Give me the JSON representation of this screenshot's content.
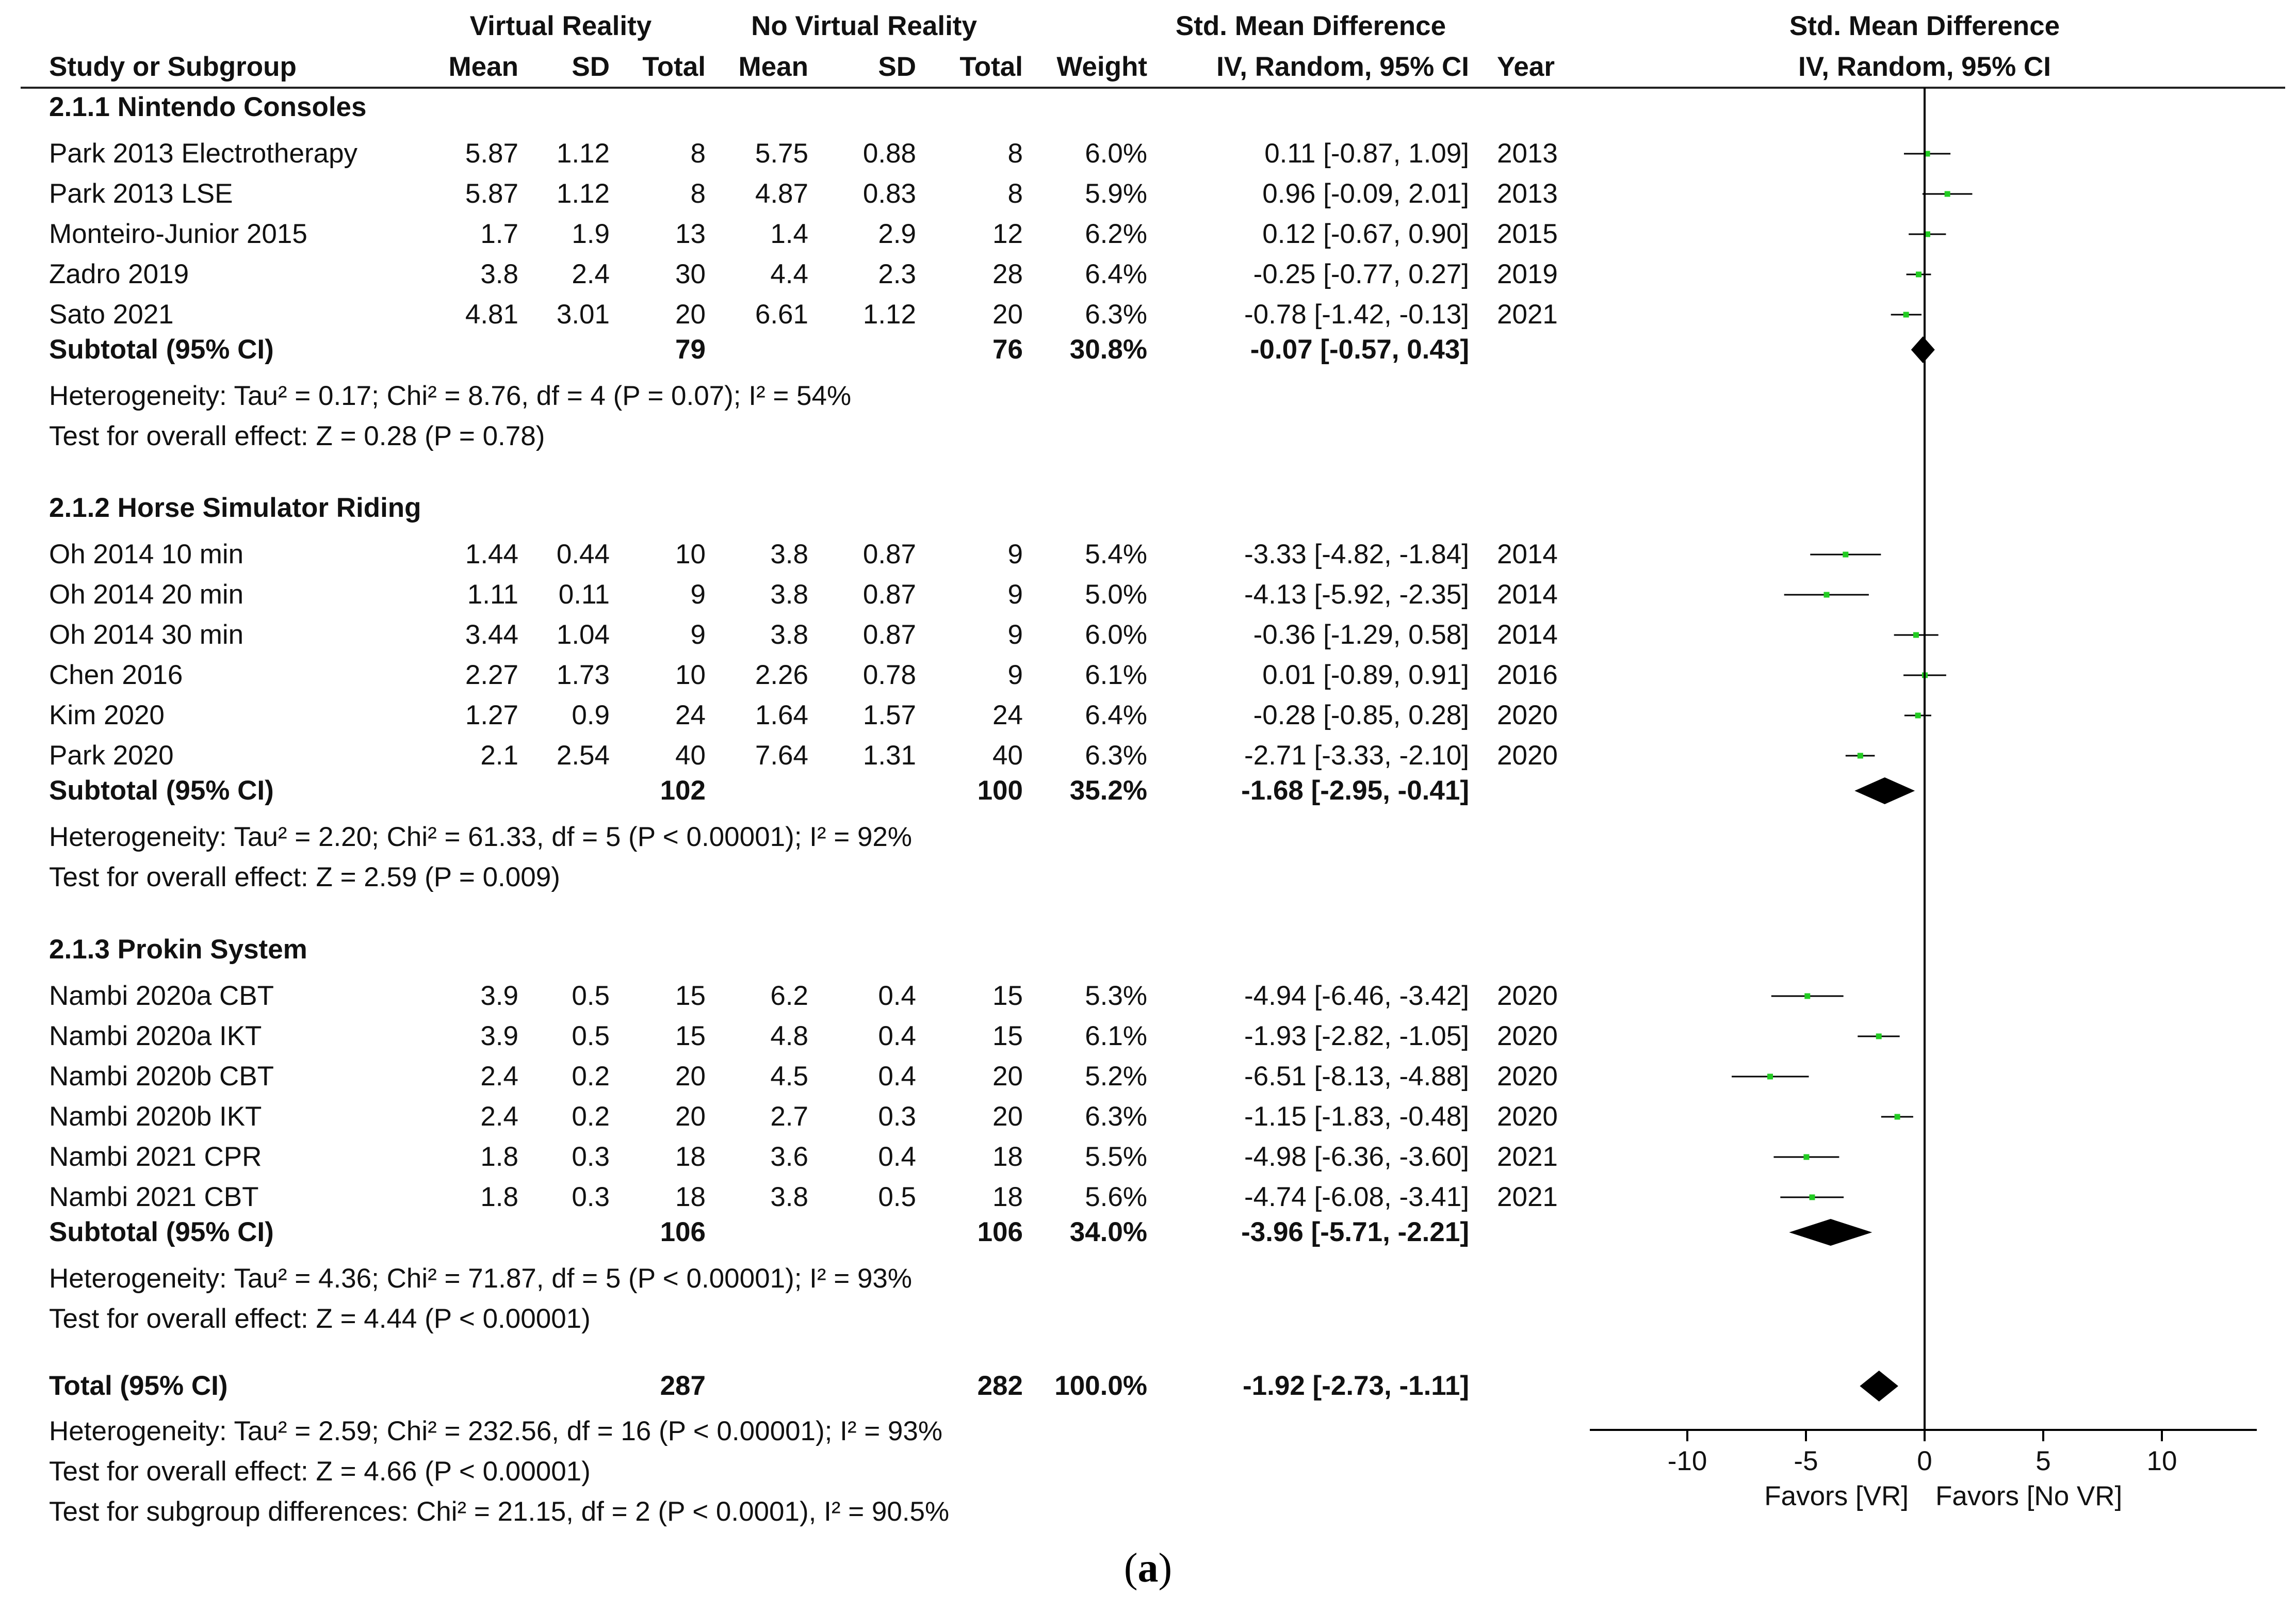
{
  "chart_data": {
    "type": "forest",
    "group_headers": {
      "experimental": "Virtual Reality",
      "control": "No Virtual Reality",
      "smd": "Std. Mean Difference",
      "plot": "Std. Mean Difference"
    },
    "column_headers": {
      "study": "Study or Subgroup",
      "mean1": "Mean",
      "sd1": "SD",
      "total1": "Total",
      "mean2": "Mean",
      "sd2": "SD",
      "total2": "Total",
      "weight": "Weight",
      "ci": "IV, Random, 95% CI",
      "year": "Year",
      "plot": "IV, Random, 95% CI"
    },
    "subgroups": [
      {
        "title": "2.1.1 Nintendo Consoles",
        "studies": [
          {
            "name": "Park 2013 Electrotherapy",
            "m1": "5.87",
            "sd1": "1.12",
            "n1": "8",
            "m2": "5.75",
            "sd2": "0.88",
            "n2": "8",
            "weight": "6.0%",
            "ci": "0.11 [-0.87, 1.09]",
            "year": "2013",
            "est": 0.11,
            "lo": -0.87,
            "hi": 1.09
          },
          {
            "name": "Park 2013 LSE",
            "m1": "5.87",
            "sd1": "1.12",
            "n1": "8",
            "m2": "4.87",
            "sd2": "0.83",
            "n2": "8",
            "weight": "5.9%",
            "ci": "0.96 [-0.09, 2.01]",
            "year": "2013",
            "est": 0.96,
            "lo": -0.09,
            "hi": 2.01
          },
          {
            "name": "Monteiro-Junior 2015",
            "m1": "1.7",
            "sd1": "1.9",
            "n1": "13",
            "m2": "1.4",
            "sd2": "2.9",
            "n2": "12",
            "weight": "6.2%",
            "ci": "0.12 [-0.67, 0.90]",
            "year": "2015",
            "est": 0.12,
            "lo": -0.67,
            "hi": 0.9
          },
          {
            "name": "Zadro 2019",
            "m1": "3.8",
            "sd1": "2.4",
            "n1": "30",
            "m2": "4.4",
            "sd2": "2.3",
            "n2": "28",
            "weight": "6.4%",
            "ci": "-0.25 [-0.77, 0.27]",
            "year": "2019",
            "est": -0.25,
            "lo": -0.77,
            "hi": 0.27
          },
          {
            "name": "Sato 2021",
            "m1": "4.81",
            "sd1": "3.01",
            "n1": "20",
            "m2": "6.61",
            "sd2": "1.12",
            "n2": "20",
            "weight": "6.3%",
            "ci": "-0.78 [-1.42, -0.13]",
            "year": "2021",
            "est": -0.78,
            "lo": -1.42,
            "hi": -0.13
          }
        ],
        "subtotal": {
          "label": "Subtotal (95% CI)",
          "n1": "79",
          "n2": "76",
          "weight": "30.8%",
          "ci": "-0.07 [-0.57, 0.43]",
          "est": -0.07,
          "lo": -0.57,
          "hi": 0.43
        },
        "heterogeneity": "Heterogeneity: Tau² = 0.17; Chi² = 8.76, df = 4 (P = 0.07); I² = 54%",
        "overall_effect": "Test for overall effect: Z = 0.28 (P = 0.78)"
      },
      {
        "title": "2.1.2 Horse Simulator Riding",
        "studies": [
          {
            "name": "Oh 2014 10 min",
            "m1": "1.44",
            "sd1": "0.44",
            "n1": "10",
            "m2": "3.8",
            "sd2": "0.87",
            "n2": "9",
            "weight": "5.4%",
            "ci": "-3.33 [-4.82, -1.84]",
            "year": "2014",
            "est": -3.33,
            "lo": -4.82,
            "hi": -1.84
          },
          {
            "name": "Oh 2014 20 min",
            "m1": "1.11",
            "sd1": "0.11",
            "n1": "9",
            "m2": "3.8",
            "sd2": "0.87",
            "n2": "9",
            "weight": "5.0%",
            "ci": "-4.13 [-5.92, -2.35]",
            "year": "2014",
            "est": -4.13,
            "lo": -5.92,
            "hi": -2.35
          },
          {
            "name": "Oh 2014 30 min",
            "m1": "3.44",
            "sd1": "1.04",
            "n1": "9",
            "m2": "3.8",
            "sd2": "0.87",
            "n2": "9",
            "weight": "6.0%",
            "ci": "-0.36 [-1.29, 0.58]",
            "year": "2014",
            "est": -0.36,
            "lo": -1.29,
            "hi": 0.58
          },
          {
            "name": "Chen 2016",
            "m1": "2.27",
            "sd1": "1.73",
            "n1": "10",
            "m2": "2.26",
            "sd2": "0.78",
            "n2": "9",
            "weight": "6.1%",
            "ci": "0.01 [-0.89, 0.91]",
            "year": "2016",
            "est": 0.01,
            "lo": -0.89,
            "hi": 0.91
          },
          {
            "name": "Kim 2020",
            "m1": "1.27",
            "sd1": "0.9",
            "n1": "24",
            "m2": "1.64",
            "sd2": "1.57",
            "n2": "24",
            "weight": "6.4%",
            "ci": "-0.28 [-0.85, 0.28]",
            "year": "2020",
            "est": -0.28,
            "lo": -0.85,
            "hi": 0.28
          },
          {
            "name": "Park 2020",
            "m1": "2.1",
            "sd1": "2.54",
            "n1": "40",
            "m2": "7.64",
            "sd2": "1.31",
            "n2": "40",
            "weight": "6.3%",
            "ci": "-2.71 [-3.33, -2.10]",
            "year": "2020",
            "est": -2.71,
            "lo": -3.33,
            "hi": -2.1
          }
        ],
        "subtotal": {
          "label": "Subtotal (95% CI)",
          "n1": "102",
          "n2": "100",
          "weight": "35.2%",
          "ci": "-1.68 [-2.95, -0.41]",
          "est": -1.68,
          "lo": -2.95,
          "hi": -0.41
        },
        "heterogeneity": "Heterogeneity: Tau² = 2.20; Chi² = 61.33, df = 5 (P < 0.00001); I² = 92%",
        "overall_effect": "Test for overall effect: Z = 2.59 (P = 0.009)"
      },
      {
        "title": "2.1.3 Prokin System",
        "studies": [
          {
            "name": "Nambi 2020a CBT",
            "m1": "3.9",
            "sd1": "0.5",
            "n1": "15",
            "m2": "6.2",
            "sd2": "0.4",
            "n2": "15",
            "weight": "5.3%",
            "ci": "-4.94 [-6.46, -3.42]",
            "year": "2020",
            "est": -4.94,
            "lo": -6.46,
            "hi": -3.42
          },
          {
            "name": "Nambi 2020a IKT",
            "m1": "3.9",
            "sd1": "0.5",
            "n1": "15",
            "m2": "4.8",
            "sd2": "0.4",
            "n2": "15",
            "weight": "6.1%",
            "ci": "-1.93 [-2.82, -1.05]",
            "year": "2020",
            "est": -1.93,
            "lo": -2.82,
            "hi": -1.05
          },
          {
            "name": "Nambi 2020b CBT",
            "m1": "2.4",
            "sd1": "0.2",
            "n1": "20",
            "m2": "4.5",
            "sd2": "0.4",
            "n2": "20",
            "weight": "5.2%",
            "ci": "-6.51 [-8.13, -4.88]",
            "year": "2020",
            "est": -6.51,
            "lo": -8.13,
            "hi": -4.88
          },
          {
            "name": "Nambi 2020b IKT",
            "m1": "2.4",
            "sd1": "0.2",
            "n1": "20",
            "m2": "2.7",
            "sd2": "0.3",
            "n2": "20",
            "weight": "6.3%",
            "ci": "-1.15 [-1.83, -0.48]",
            "year": "2020",
            "est": -1.15,
            "lo": -1.83,
            "hi": -0.48
          },
          {
            "name": "Nambi 2021 CPR",
            "m1": "1.8",
            "sd1": "0.3",
            "n1": "18",
            "m2": "3.6",
            "sd2": "0.4",
            "n2": "18",
            "weight": "5.5%",
            "ci": "-4.98 [-6.36, -3.60]",
            "year": "2021",
            "est": -4.98,
            "lo": -6.36,
            "hi": -3.6
          },
          {
            "name": "Nambi 2021 CBT",
            "m1": "1.8",
            "sd1": "0.3",
            "n1": "18",
            "m2": "3.8",
            "sd2": "0.5",
            "n2": "18",
            "weight": "5.6%",
            "ci": "-4.74 [-6.08, -3.41]",
            "year": "2021",
            "est": -4.74,
            "lo": -6.08,
            "hi": -3.41
          }
        ],
        "subtotal": {
          "label": "Subtotal (95% CI)",
          "n1": "106",
          "n2": "106",
          "weight": "34.0%",
          "ci": "-3.96 [-5.71, -2.21]",
          "est": -3.96,
          "lo": -5.71,
          "hi": -2.21
        },
        "heterogeneity": "Heterogeneity: Tau² = 4.36; Chi² = 71.87, df = 5 (P < 0.00001); I² = 93%",
        "overall_effect": "Test for overall effect: Z = 4.44 (P < 0.00001)"
      }
    ],
    "total": {
      "label": "Total (95% CI)",
      "n1": "287",
      "n2": "282",
      "weight": "100.0%",
      "ci": "-1.92 [-2.73, -1.11]",
      "est": -1.92,
      "lo": -2.73,
      "hi": -1.11
    },
    "footer": [
      "Heterogeneity: Tau² = 2.59; Chi² = 232.56, df = 16 (P < 0.00001); I² = 93%",
      "Test for overall effect: Z = 4.66 (P < 0.00001)",
      "Test for subgroup differences: Chi² = 21.15, df = 2 (P < 0.0001), I² = 90.5%"
    ],
    "x_axis": {
      "ticks": [
        -10,
        -5,
        0,
        5,
        10
      ],
      "xlim": [
        -14,
        14
      ],
      "favors_left": "Favors [VR]",
      "favors_right": "Favors [No VR]"
    },
    "colors": {
      "point": "#22cc22",
      "diamond": "#000000",
      "text": "#111111"
    }
  },
  "caption": {
    "open": "(",
    "letter": "a",
    "close": ")"
  }
}
